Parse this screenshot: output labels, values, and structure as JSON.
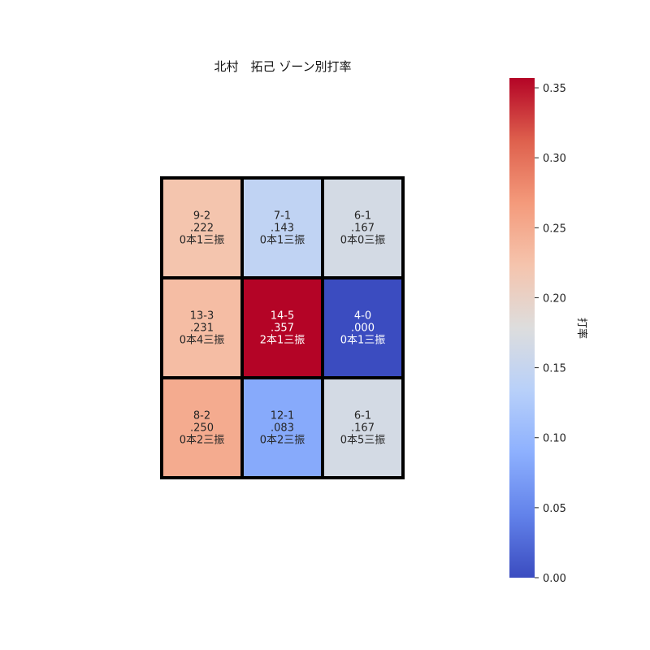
{
  "chart_data": {
    "type": "heatmap",
    "title": "北村　拓己 ゾーン別打率",
    "colorbar": {
      "label": "打率",
      "range": [
        0,
        0.357
      ],
      "ticks": [
        0.0,
        0.05,
        0.1,
        0.15,
        0.2,
        0.25,
        0.3,
        0.35
      ],
      "tick_labels": [
        "0.00",
        "0.05",
        "0.10",
        "0.15",
        "0.20",
        "0.25",
        "0.30",
        "0.35"
      ],
      "colormap": "coolwarm"
    },
    "grid": [
      [
        {
          "record": "9-2",
          "avg_label": ".222",
          "detail": "0本1三振",
          "value": 0.222
        },
        {
          "record": "7-1",
          "avg_label": ".143",
          "detail": "0本1三振",
          "value": 0.143
        },
        {
          "record": "6-1",
          "avg_label": ".167",
          "detail": "0本0三振",
          "value": 0.167
        }
      ],
      [
        {
          "record": "13-3",
          "avg_label": ".231",
          "detail": "0本4三振",
          "value": 0.231
        },
        {
          "record": "14-5",
          "avg_label": ".357",
          "detail": "2本1三振",
          "value": 0.357
        },
        {
          "record": "4-0",
          "avg_label": ".000",
          "detail": "0本1三振",
          "value": 0.0
        }
      ],
      [
        {
          "record": "8-2",
          "avg_label": ".250",
          "detail": "0本2三振",
          "value": 0.25
        },
        {
          "record": "12-1",
          "avg_label": ".083",
          "detail": "0本2三振",
          "value": 0.083
        },
        {
          "record": "6-1",
          "avg_label": ".167",
          "detail": "0本5三振",
          "value": 0.167
        }
      ]
    ]
  }
}
